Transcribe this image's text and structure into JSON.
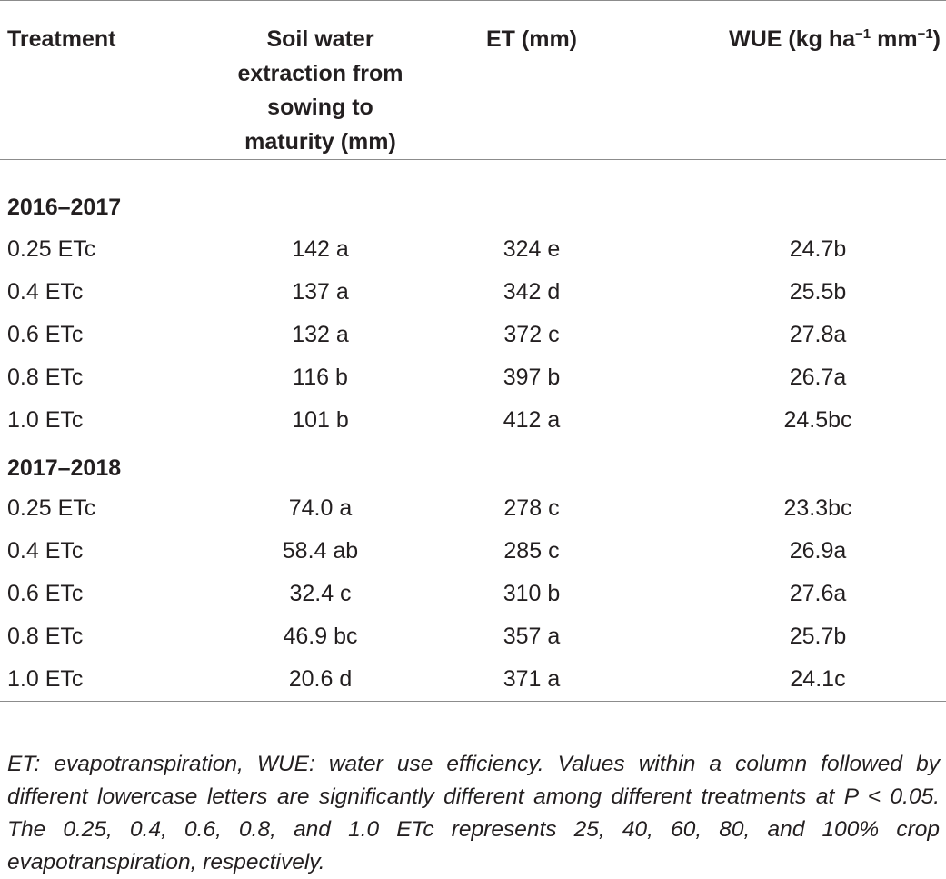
{
  "table": {
    "headers": {
      "treatment": "Treatment",
      "soil_line1": "Soil water",
      "soil_line2": "extraction from",
      "soil_line3": "sowing to",
      "soil_line4": "maturity (mm)",
      "et": "ET (mm)",
      "wue_prefix": "WUE (kg ha",
      "wue_sup1": "−1",
      "wue_mid": " mm",
      "wue_sup2": "−1",
      "wue_suffix": ")"
    },
    "sections": [
      {
        "season": "2016–2017",
        "rows": [
          {
            "treatment": "0.25 ETc",
            "soil_water_extraction": "142 a",
            "et": "324 e",
            "wue": "24.7b"
          },
          {
            "treatment": "0.4 ETc",
            "soil_water_extraction": "137 a",
            "et": "342 d",
            "wue": "25.5b"
          },
          {
            "treatment": "0.6 ETc",
            "soil_water_extraction": "132 a",
            "et": "372 c",
            "wue": "27.8a"
          },
          {
            "treatment": "0.8 ETc",
            "soil_water_extraction": "116 b",
            "et": "397 b",
            "wue": "26.7a"
          },
          {
            "treatment": "1.0 ETc",
            "soil_water_extraction": "101 b",
            "et": "412 a",
            "wue": "24.5bc"
          }
        ]
      },
      {
        "season": "2017–2018",
        "rows": [
          {
            "treatment": "0.25 ETc",
            "soil_water_extraction": "74.0 a",
            "et": "278 c",
            "wue": "23.3bc"
          },
          {
            "treatment": "0.4 ETc",
            "soil_water_extraction": "58.4 ab",
            "et": "285 c",
            "wue": "26.9a"
          },
          {
            "treatment": "0.6 ETc",
            "soil_water_extraction": "32.4 c",
            "et": "310 b",
            "wue": "27.6a"
          },
          {
            "treatment": "0.8 ETc",
            "soil_water_extraction": "46.9 bc",
            "et": "357 a",
            "wue": "25.7b"
          },
          {
            "treatment": "1.0 ETc",
            "soil_water_extraction": "20.6 d",
            "et": "371 a",
            "wue": "24.1c"
          }
        ]
      }
    ]
  },
  "footnote": "ET: evapotranspiration, WUE: water use efficiency. Values within a column followed by different lowercase letters are significantly different among different treatments at P < 0.05. The 0.25, 0.4, 0.6, 0.8, and 1.0 ETc represents 25, 40, 60, 80, and 100% crop evapotranspiration, respectively."
}
